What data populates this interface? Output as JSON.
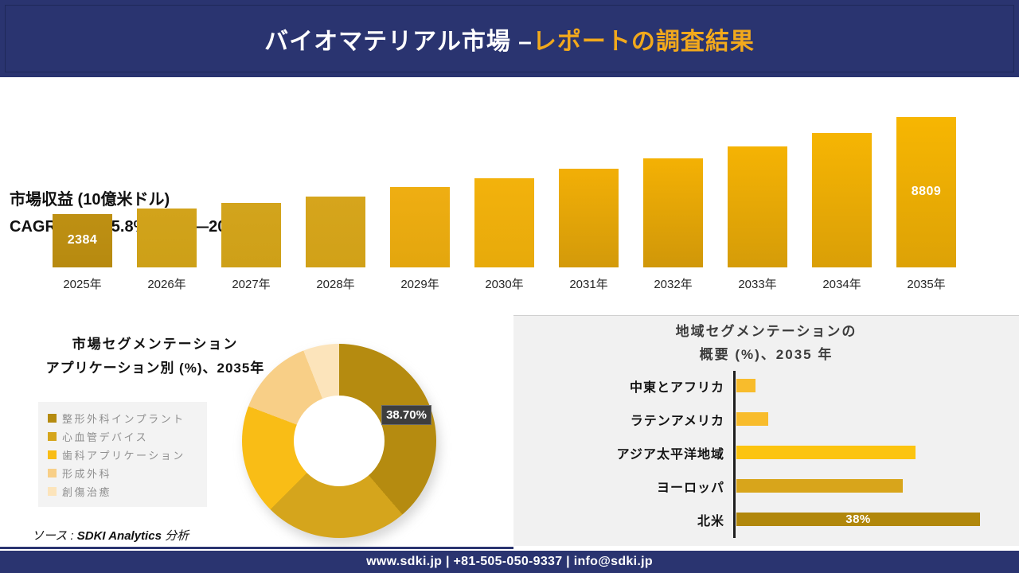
{
  "header": {
    "title_white": "バイオマテリアル市場 –",
    "title_gold": "レポートの調査結果"
  },
  "chart_data": [
    {
      "id": "revenue_bars",
      "type": "bar",
      "title": "市場収益 (10億米ドル)",
      "subtitle": "CAGR％ - 約15.8% (2026―2035年)",
      "ylabel": "市場収益 (10億米ドル)",
      "categories": [
        "2025年",
        "2026年",
        "2027年",
        "2028年",
        "2029年",
        "2030年",
        "2031年",
        "2032年",
        "2033年",
        "2034年",
        "2035年"
      ],
      "values": [
        2384,
        2730,
        3120,
        3560,
        4150,
        4750,
        5380,
        6080,
        6870,
        7760,
        8809
      ],
      "values_note": "only 2384 (2025) and 8809 (2035) are labeled in the figure; intermediate values estimated from bar heights",
      "data_labels": [
        "2384",
        null,
        null,
        null,
        null,
        null,
        null,
        null,
        null,
        null,
        "8809"
      ],
      "bar_colors": [
        [
          "#BE9013",
          "#B78A10"
        ],
        [
          "#D2A31B",
          "#CDA017"
        ],
        [
          "#D3A41C",
          "#CEA018"
        ],
        [
          "#D6A51C",
          "#D1A118"
        ],
        [
          "#EFAE12",
          "#E3A60E"
        ],
        [
          "#F3B20C",
          "#E7AA0B"
        ],
        [
          "#F2AF06",
          "#D39A0A"
        ],
        [
          "#F4B104",
          "#D09709"
        ],
        [
          "#F5B304",
          "#D59C08"
        ],
        [
          "#F6B503",
          "#DA9F07"
        ],
        [
          "#F7B602",
          "#DDA206"
        ]
      ]
    },
    {
      "id": "application_donut",
      "type": "pie",
      "title": "市場セグメンテーション",
      "subtitle": "アプリケーション別 (%)、2035年",
      "legend_position": "left",
      "series": [
        {
          "label": "整形外科インプラント",
          "value": 38.7,
          "color": "#B58B10",
          "data_label": "38.70%"
        },
        {
          "label": "心血管デバイス",
          "value": 23.8,
          "color": "#D5A51C",
          "data_label": null
        },
        {
          "label": "歯科アプリケーション",
          "value": 18.3,
          "color": "#F9BD16",
          "data_label": null
        },
        {
          "label": "形成外科",
          "value": 13.2,
          "color": "#F8CF87",
          "data_label": null
        },
        {
          "label": "創傷治癒",
          "value": 6.0,
          "color": "#FCE4BB",
          "data_label": null
        }
      ],
      "values_note": "only 38.70% labeled in figure; other slice values estimated from arc angles"
    },
    {
      "id": "region_bars",
      "type": "bar",
      "orientation": "horizontal",
      "title_line1": "地域セグメンテーションの",
      "title_line2": "概要 (%)、2035 年",
      "series": [
        {
          "label": "中東とアフリカ",
          "value": 3,
          "color": "#F8BC2C",
          "data_label": null
        },
        {
          "label": "ラテンアメリカ",
          "value": 5,
          "color": "#F8BC2C",
          "data_label": null
        },
        {
          "label": "アジア太平洋地域",
          "value": 28,
          "color": "#FCC40F",
          "data_label": null
        },
        {
          "label": "ヨーロッパ",
          "value": 26,
          "color": "#D8A51B",
          "data_label": null
        },
        {
          "label": "北米",
          "value": 38,
          "color": "#B1870B",
          "data_label": "38%"
        }
      ],
      "values_note": "only 38% (北米) labeled in figure; other bar values estimated from bar lengths"
    }
  ],
  "source": {
    "prefix": "ソース : ",
    "brand": "SDKI Analytics",
    "suffix": " 分析"
  },
  "footer": {
    "contact": "www.sdki.jp | +81-505-050-9337 | info@sdki.jp"
  }
}
